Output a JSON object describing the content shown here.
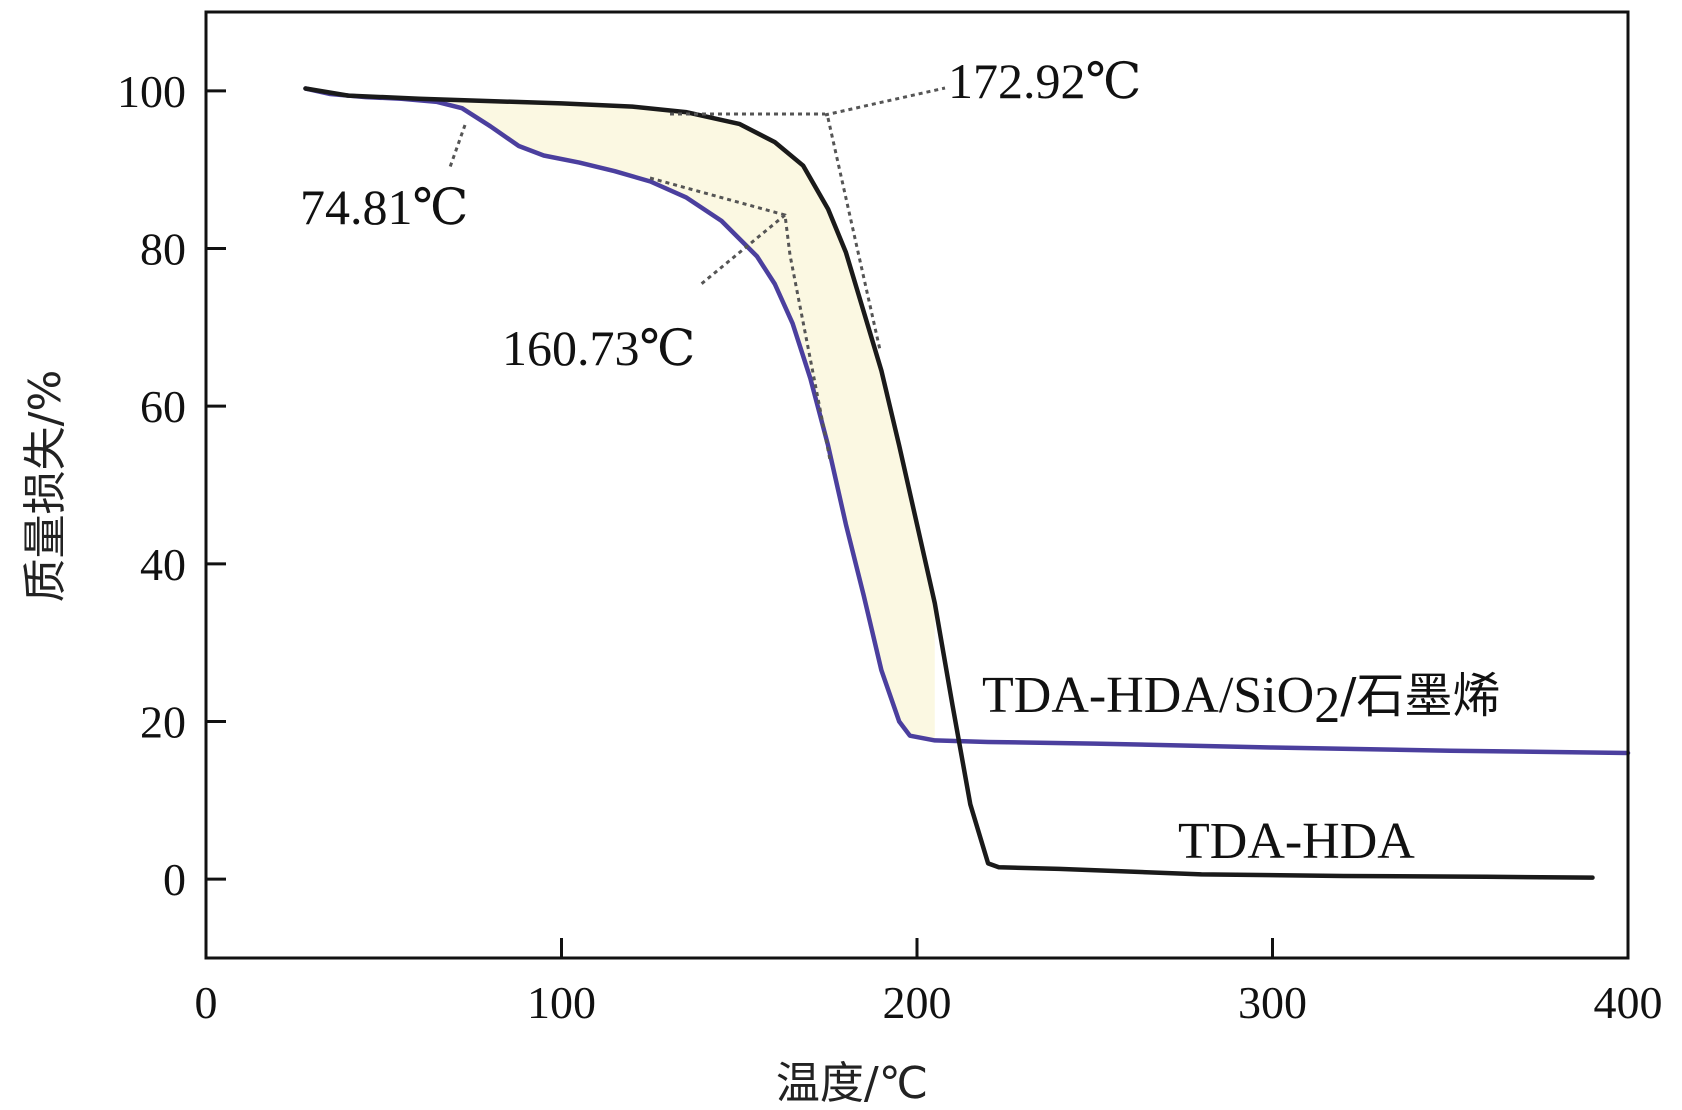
{
  "chart_data": {
    "type": "line",
    "xlabel": "温度/℃",
    "ylabel": "质量损失/%",
    "xlim": [
      0,
      400
    ],
    "ylim": [
      -10,
      110
    ],
    "x_ticks": [
      0,
      100,
      200,
      300,
      400
    ],
    "y_ticks": [
      0,
      20,
      40,
      60,
      80,
      100
    ],
    "grid": false,
    "series": [
      {
        "name": "TDA-HDA/SiO2/石墨烯",
        "label_main": "TDA-HDA/SiO",
        "label_sub": "2",
        "label_tail": "/石墨烯",
        "color": "#4b3f9e",
        "points": [
          [
            28,
            100.3
          ],
          [
            35,
            99.6
          ],
          [
            45,
            99.2
          ],
          [
            55,
            99.0
          ],
          [
            65,
            98.6
          ],
          [
            72,
            97.8
          ],
          [
            80,
            95.5
          ],
          [
            88,
            93.0
          ],
          [
            95,
            91.8
          ],
          [
            105,
            90.9
          ],
          [
            115,
            89.8
          ],
          [
            125,
            88.5
          ],
          [
            135,
            86.5
          ],
          [
            145,
            83.5
          ],
          [
            155,
            79.0
          ],
          [
            160,
            75.5
          ],
          [
            165,
            70.5
          ],
          [
            170,
            63.5
          ],
          [
            175,
            55.0
          ],
          [
            180,
            45.0
          ],
          [
            185,
            36.0
          ],
          [
            190,
            26.5
          ],
          [
            195,
            20.0
          ],
          [
            198,
            18.2
          ],
          [
            205,
            17.6
          ],
          [
            220,
            17.4
          ],
          [
            250,
            17.2
          ],
          [
            300,
            16.7
          ],
          [
            350,
            16.3
          ],
          [
            400,
            16.0
          ]
        ]
      },
      {
        "name": "TDA-HDA",
        "label_main": "TDA-HDA",
        "color": "#1a1a1a",
        "points": [
          [
            28,
            100.3
          ],
          [
            40,
            99.4
          ],
          [
            60,
            99.0
          ],
          [
            80,
            98.7
          ],
          [
            100,
            98.4
          ],
          [
            120,
            98.0
          ],
          [
            135,
            97.3
          ],
          [
            150,
            95.8
          ],
          [
            160,
            93.5
          ],
          [
            168,
            90.5
          ],
          [
            175,
            85.0
          ],
          [
            180,
            79.5
          ],
          [
            185,
            72.0
          ],
          [
            190,
            64.5
          ],
          [
            195,
            55.0
          ],
          [
            200,
            45.0
          ],
          [
            205,
            35.0
          ],
          [
            210,
            22.0
          ],
          [
            215,
            9.5
          ],
          [
            220,
            2.0
          ],
          [
            223,
            1.5
          ],
          [
            240,
            1.3
          ],
          [
            280,
            0.6
          ],
          [
            320,
            0.4
          ],
          [
            360,
            0.3
          ],
          [
            390,
            0.2
          ]
        ]
      }
    ],
    "annotations": [
      {
        "text": "74.81℃",
        "x": 74.81
      },
      {
        "text": "160.73℃",
        "x": 160.73
      },
      {
        "text": "172.92℃",
        "x": 172.92
      }
    ]
  }
}
